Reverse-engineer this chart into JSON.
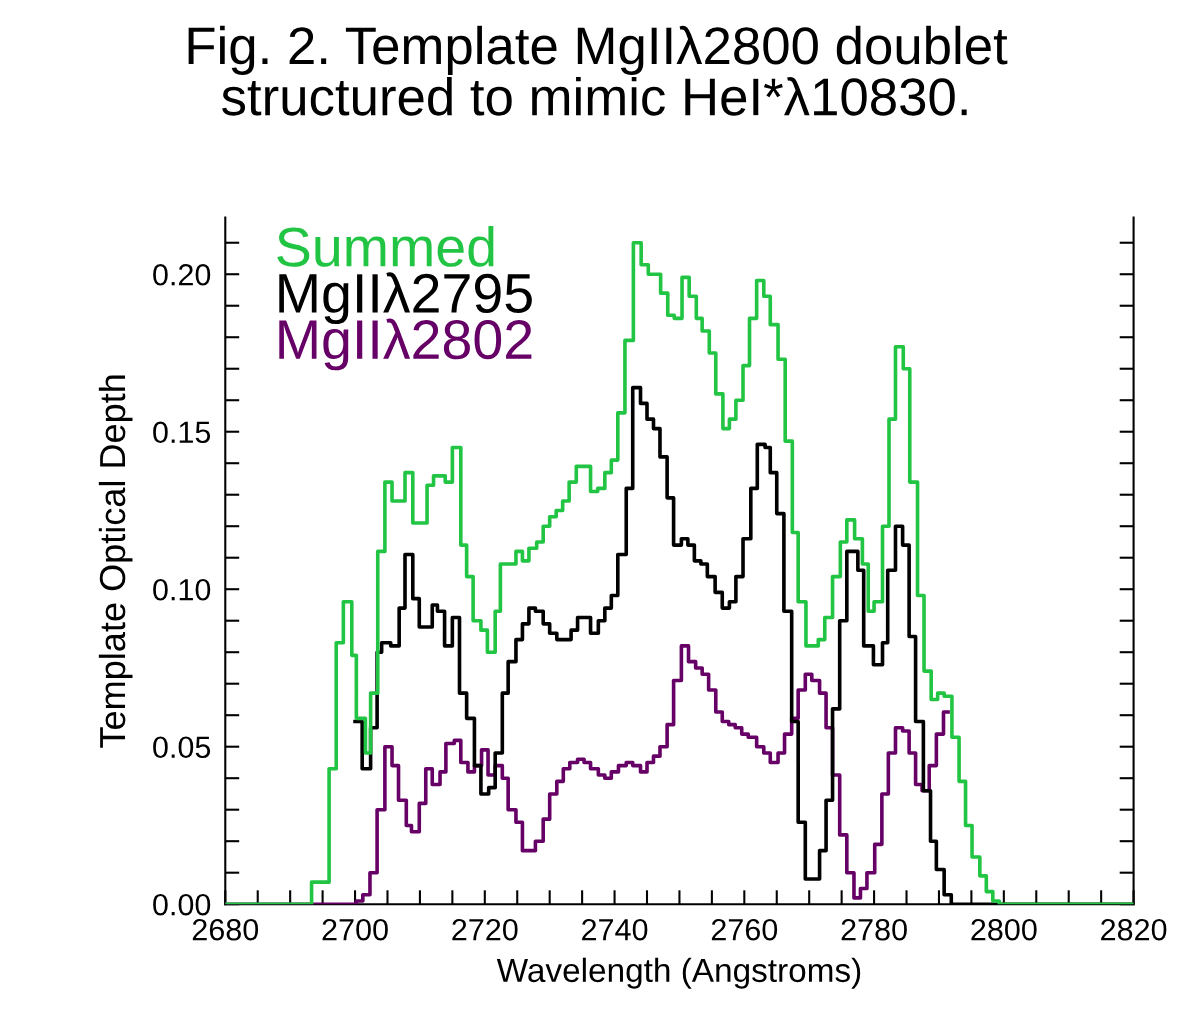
{
  "chart_data": {
    "type": "step",
    "title": "Fig. 2. Template MgIIλ2800 doublet\nstructured to mimic HeI*λ10830.",
    "xlabel": "Wavelength (Angstroms)",
    "ylabel": "Template Optical Depth",
    "xlim": [
      2680,
      2820
    ],
    "ylim": [
      0,
      0.218
    ],
    "xticks": [
      2680,
      {
        "value": 2685,
        "label": null
      },
      2700,
      {
        "value": 2705,
        "label": null
      },
      {
        "value": 2710,
        "label": null
      },
      {
        "value": 2715,
        "label": null
      },
      2720,
      {
        "value": 2725,
        "label": null
      },
      {
        "value": 2730,
        "label": null
      },
      {
        "value": 2735,
        "label": null
      },
      2740,
      {
        "value": 2745,
        "label": null
      },
      {
        "value": 2750,
        "label": null
      },
      {
        "value": 2755,
        "label": null
      },
      2760,
      {
        "value": 2765,
        "label": null
      },
      {
        "value": 2770,
        "label": null
      },
      {
        "value": 2775,
        "label": null
      },
      2780,
      {
        "value": 2785,
        "label": null
      },
      {
        "value": 2790,
        "label": null
      },
      {
        "value": 2795,
        "label": null
      },
      2800,
      {
        "value": 2805,
        "label": null
      },
      {
        "value": 2810,
        "label": null
      },
      {
        "value": 2815,
        "label": null
      },
      2820,
      {
        "value": 2690,
        "label": null
      },
      {
        "value": 2695,
        "label": null
      }
    ],
    "yticks": [
      {
        "value": 0,
        "label": "0.00"
      },
      {
        "value": 0.01,
        "label": null
      },
      {
        "value": 0.02,
        "label": null
      },
      {
        "value": 0.03,
        "label": null
      },
      {
        "value": 0.04,
        "label": null
      },
      {
        "value": 0.05,
        "label": "0.05"
      },
      {
        "value": 0.06,
        "label": null
      },
      {
        "value": 0.07,
        "label": null
      },
      {
        "value": 0.08,
        "label": null
      },
      {
        "value": 0.09,
        "label": null
      },
      {
        "value": 0.1,
        "label": "0.10"
      },
      {
        "value": 0.11,
        "label": null
      },
      {
        "value": 0.12,
        "label": null
      },
      {
        "value": 0.13,
        "label": null
      },
      {
        "value": 0.14,
        "label": null
      },
      {
        "value": 0.15,
        "label": "0.15"
      },
      {
        "value": 0.16,
        "label": null
      },
      {
        "value": 0.17,
        "label": null
      },
      {
        "value": 0.18,
        "label": null
      },
      {
        "value": 0.19,
        "label": null
      },
      {
        "value": 0.2,
        "label": "0.20"
      },
      {
        "value": 0.21,
        "label": null
      }
    ],
    "grid": false,
    "legend": "top left",
    "series": [
      {
        "name": "Summed",
        "color": "#22c443",
        "x": [
          2680,
          2693.3,
          2696.0,
          2697.1,
          2698.2,
          2699.5,
          2700.2,
          2701.6,
          2702.4,
          2703.5,
          2704.6,
          2705.7,
          2707.7,
          2708.9,
          2711.1,
          2712.1,
          2713.9,
          2715.0,
          2716.3,
          2717.2,
          2718.2,
          2719.4,
          2720.4,
          2721.6,
          2722.4,
          2724.8,
          2725.8,
          2726.8,
          2728.0,
          2729.0,
          2730.0,
          2731.0,
          2732.0,
          2733.0,
          2734.1,
          2735.4,
          2736.3,
          2737.4,
          2738.5,
          2739.5,
          2740.5,
          2741.6,
          2742.9,
          2744.1,
          2745.2,
          2747.1,
          2748.2,
          2749.2,
          2750.4,
          2751.5,
          2752.6,
          2753.5,
          2754.6,
          2755.6,
          2756.7,
          2757.7,
          2758.7,
          2759.8,
          2760.8,
          2761.9,
          2763.0,
          2764.0,
          2765.2,
          2766.3,
          2767.4,
          2768.3,
          2769.5,
          2771.4,
          2772.4,
          2773.6,
          2774.8,
          2775.8,
          2777.0,
          2778.2,
          2779.1,
          2780.0,
          2781.3,
          2782.3,
          2783.3,
          2784.5,
          2785.5,
          2786.7,
          2787.7,
          2788.8,
          2789.8,
          2790.8,
          2792.0,
          2793.1,
          2794.1,
          2795.1,
          2796.3,
          2797.3,
          2798.3,
          2799.3,
          2820
        ],
        "values": [
          0,
          0.007,
          0.043,
          0.083,
          0.096,
          0.079,
          0.059,
          0.048,
          0.067,
          0.112,
          0.134,
          0.128,
          0.137,
          0.121,
          0.133,
          0.136,
          0.134,
          0.145,
          0.114,
          0.104,
          0.09,
          0.087,
          0.08,
          0.093,
          0.108,
          0.112,
          0.109,
          0.113,
          0.115,
          0.12,
          0.123,
          0.125,
          0.128,
          0.134,
          0.139,
          0.139,
          0.131,
          0.132,
          0.137,
          0.141,
          0.156,
          0.179,
          0.21,
          0.203,
          0.2,
          0.194,
          0.187,
          0.186,
          0.199,
          0.193,
          0.186,
          0.182,
          0.175,
          0.162,
          0.151,
          0.154,
          0.16,
          0.171,
          0.186,
          0.198,
          0.193,
          0.184,
          0.173,
          0.147,
          0.118,
          0.096,
          0.082,
          0.084,
          0.091,
          0.104,
          0.115,
          0.122,
          0.116,
          0.108,
          0.093,
          0.096,
          0.12,
          0.154,
          0.177,
          0.17,
          0.134,
          0.098,
          0.074,
          0.065,
          0.067,
          0.066,
          0.053,
          0.039,
          0.025,
          0.015,
          0.009,
          0.004,
          0.001,
          0,
          0
        ]
      },
      {
        "name": "MgIIλ2795",
        "color": "#000000",
        "x": [
          2700.0,
          2701.1,
          2702.4,
          2703.4,
          2704.1,
          2705.5,
          2706.8,
          2707.7,
          2708.9,
          2709.9,
          2711.9,
          2712.7,
          2713.8,
          2715.0,
          2716.1,
          2717.2,
          2718.4,
          2719.4,
          2720.6,
          2721.6,
          2722.7,
          2723.6,
          2724.8,
          2725.8,
          2726.8,
          2727.8,
          2729.0,
          2730.0,
          2731.1,
          2733.3,
          2734.3,
          2735.3,
          2736.3,
          2737.5,
          2738.5,
          2739.5,
          2740.5,
          2741.8,
          2742.8,
          2744.0,
          2745.0,
          2746.0,
          2747.0,
          2748.1,
          2749.1,
          2750.3,
          2751.3,
          2752.3,
          2753.3,
          2754.3,
          2755.5,
          2756.6,
          2757.7,
          2758.7,
          2759.8,
          2761.0,
          2762.0,
          2763.2,
          2764.0,
          2765.0,
          2766.1,
          2767.3,
          2768.3,
          2769.4,
          2771.6,
          2772.6,
          2773.6,
          2774.7,
          2775.8,
          2777.5,
          2778.4,
          2779.9,
          2781.3,
          2782.1,
          2783.3,
          2784.4,
          2785.4,
          2786.4,
          2787.6,
          2788.7,
          2789.6,
          2790.8,
          2791.9,
          2820
        ],
        "values": [
          0.058,
          0.043,
          0.056,
          0.08,
          0.083,
          0.082,
          0.094,
          0.111,
          0.097,
          0.088,
          0.095,
          0.093,
          0.082,
          0.091,
          0.067,
          0.059,
          0.044,
          0.035,
          0.037,
          0.048,
          0.067,
          0.077,
          0.084,
          0.089,
          0.094,
          0.093,
          0.089,
          0.086,
          0.084,
          0.087,
          0.091,
          0.091,
          0.086,
          0.09,
          0.094,
          0.098,
          0.111,
          0.132,
          0.164,
          0.159,
          0.154,
          0.151,
          0.142,
          0.129,
          0.114,
          0.116,
          0.114,
          0.109,
          0.108,
          0.104,
          0.099,
          0.094,
          0.096,
          0.104,
          0.116,
          0.132,
          0.146,
          0.145,
          0.137,
          0.124,
          0.093,
          0.058,
          0.026,
          0.008,
          0.017,
          0.033,
          0.062,
          0.09,
          0.112,
          0.106,
          0.082,
          0.076,
          0.083,
          0.106,
          0.12,
          0.114,
          0.085,
          0.058,
          0.036,
          0.02,
          0.011,
          0.003,
          0,
          0
        ]
      },
      {
        "name": "MgIIλ2802",
        "color": "#660066",
        "x": [
          2680,
          2700.2,
          2701.2,
          2702.3,
          2703.4,
          2704.6,
          2705.7,
          2706.7,
          2707.9,
          2708.7,
          2709.9,
          2710.9,
          2711.9,
          2713.1,
          2714.0,
          2715.3,
          2716.3,
          2717.4,
          2718.4,
          2719.5,
          2720.5,
          2721.6,
          2722.7,
          2723.6,
          2724.8,
          2725.8,
          2727.8,
          2729.0,
          2730.0,
          2731.1,
          2732.1,
          2733.1,
          2734.3,
          2735.3,
          2736.3,
          2737.5,
          2738.5,
          2739.5,
          2740.6,
          2741.8,
          2742.8,
          2744.0,
          2745.0,
          2746.0,
          2747.0,
          2748.1,
          2749.1,
          2750.3,
          2751.4,
          2752.5,
          2753.5,
          2754.5,
          2755.6,
          2756.6,
          2757.6,
          2758.6,
          2759.6,
          2760.6,
          2761.9,
          2763.0,
          2764.0,
          2765.2,
          2766.2,
          2767.3,
          2768.3,
          2769.4,
          2770.4,
          2771.6,
          2772.6,
          2773.6,
          2774.7,
          2775.8,
          2776.9,
          2777.9,
          2778.9,
          2780.1,
          2781.2,
          2782.2,
          2783.3,
          2784.4,
          2785.4,
          2786.4,
          2787.4,
          2788.5,
          2789.6,
          2790.7,
          2791.4
        ],
        "values": [
          0,
          0.001,
          0.003,
          0.01,
          0.03,
          0.05,
          0.044,
          0.033,
          0.025,
          0.023,
          0.032,
          0.043,
          0.038,
          0.042,
          0.051,
          0.052,
          0.045,
          0.042,
          0.044,
          0.049,
          0.041,
          0.044,
          0.04,
          0.03,
          0.026,
          0.017,
          0.02,
          0.027,
          0.035,
          0.039,
          0.043,
          0.045,
          0.046,
          0.045,
          0.043,
          0.041,
          0.04,
          0.042,
          0.044,
          0.045,
          0.044,
          0.042,
          0.045,
          0.047,
          0.05,
          0.057,
          0.071,
          0.082,
          0.077,
          0.075,
          0.073,
          0.068,
          0.061,
          0.058,
          0.057,
          0.056,
          0.054,
          0.053,
          0.05,
          0.048,
          0.045,
          0.048,
          0.054,
          0.059,
          0.068,
          0.073,
          0.071,
          0.067,
          0.056,
          0.041,
          0.022,
          0.01,
          0.002,
          0.005,
          0.01,
          0.019,
          0.035,
          0.048,
          0.056,
          0.055,
          0.048,
          0.038,
          0.036,
          0.044,
          0.054,
          0.061,
          0.061
        ]
      }
    ]
  }
}
